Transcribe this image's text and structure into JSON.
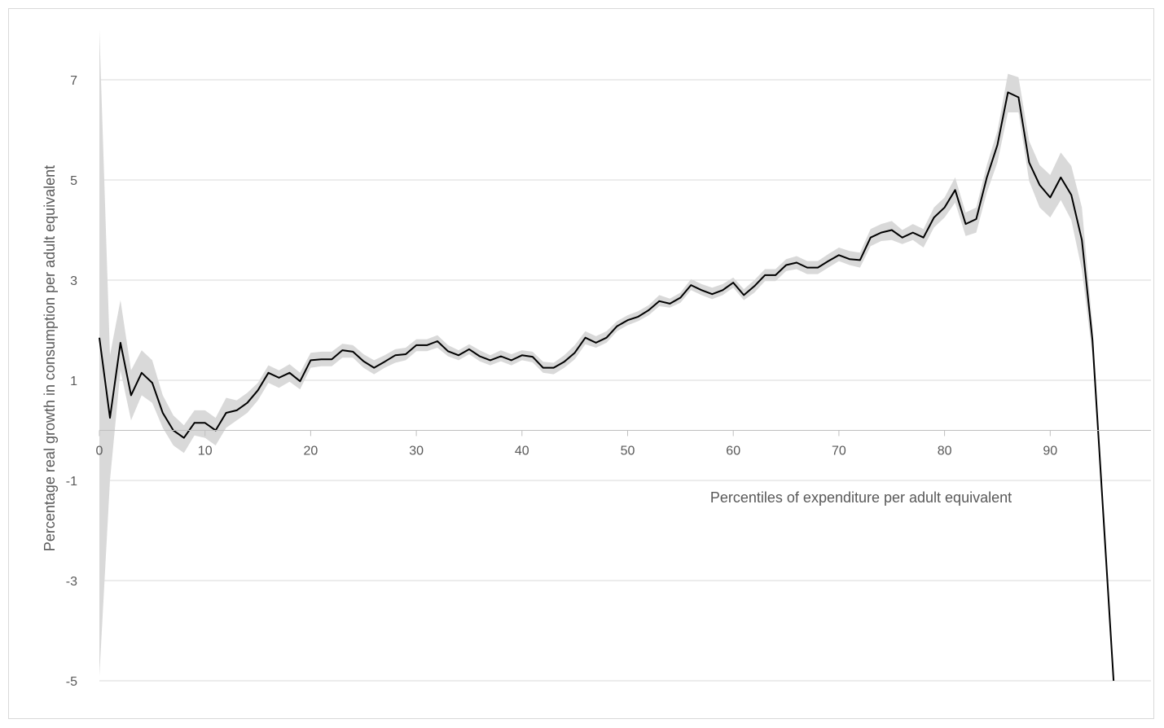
{
  "chart_data": {
    "type": "line",
    "title": "",
    "xlabel": "Percentiles of expenditure per adult equivalent",
    "ylabel": "Percentage real growth in consumption per adult equivalent",
    "xlim": [
      0,
      99
    ],
    "ylim": [
      -5,
      8
    ],
    "x_ticks": [
      0,
      10,
      20,
      30,
      40,
      50,
      60,
      70,
      80,
      90
    ],
    "y_ticks": [
      7,
      5,
      3,
      1,
      -1,
      -3,
      -5
    ],
    "grid": true,
    "legend": "none",
    "colors": {
      "line": "#000000",
      "band": "#d9d9d9",
      "grid": "#d9d9d9",
      "text": "#595959"
    },
    "series": [
      {
        "x": [
          0,
          1,
          2,
          3,
          4,
          5,
          6,
          7,
          8,
          9,
          10,
          11,
          12,
          13,
          14,
          15,
          16,
          17,
          18,
          19,
          20,
          21,
          22,
          23,
          24,
          25,
          26,
          27,
          28,
          29,
          30,
          31,
          32,
          33,
          34,
          35,
          36,
          37,
          38,
          39,
          40,
          41,
          42,
          43,
          44,
          45,
          46,
          47,
          48,
          49,
          50,
          51,
          52,
          53,
          54,
          55,
          56,
          57,
          58,
          59,
          60,
          61,
          62,
          63,
          64,
          65,
          66,
          67,
          68,
          69,
          70,
          71,
          72,
          73,
          74,
          75,
          76,
          77,
          78,
          79,
          80,
          81,
          82,
          83,
          84,
          85,
          86,
          87,
          88,
          89,
          90,
          91,
          92,
          93,
          94,
          95,
          96
        ],
        "y": [
          1.85,
          0.25,
          1.75,
          0.7,
          1.15,
          0.95,
          0.35,
          0.0,
          -0.15,
          0.15,
          0.15,
          0.0,
          0.35,
          0.4,
          0.55,
          0.8,
          1.15,
          1.05,
          1.15,
          0.98,
          1.4,
          1.42,
          1.42,
          1.6,
          1.57,
          1.38,
          1.25,
          1.37,
          1.5,
          1.52,
          1.7,
          1.7,
          1.78,
          1.58,
          1.5,
          1.62,
          1.48,
          1.4,
          1.48,
          1.4,
          1.5,
          1.47,
          1.25,
          1.25,
          1.37,
          1.55,
          1.85,
          1.75,
          1.85,
          2.08,
          2.2,
          2.27,
          2.4,
          2.58,
          2.53,
          2.65,
          2.9,
          2.8,
          2.72,
          2.8,
          2.95,
          2.7,
          2.88,
          3.1,
          3.1,
          3.3,
          3.35,
          3.25,
          3.25,
          3.38,
          3.5,
          3.42,
          3.4,
          3.85,
          3.95,
          4.0,
          3.85,
          3.95,
          3.85,
          4.25,
          4.45,
          4.8,
          4.12,
          4.22,
          5.05,
          5.7,
          6.75,
          6.65,
          5.35,
          4.9,
          4.65,
          5.05,
          4.7,
          3.8,
          1.8,
          -1.6,
          -5.0
        ],
        "lower": [
          -4.9,
          -1.0,
          1.2,
          0.2,
          0.7,
          0.55,
          0.05,
          -0.3,
          -0.45,
          -0.1,
          -0.15,
          -0.3,
          0.05,
          0.2,
          0.35,
          0.6,
          0.95,
          0.85,
          0.97,
          0.82,
          1.25,
          1.28,
          1.28,
          1.45,
          1.45,
          1.25,
          1.12,
          1.25,
          1.35,
          1.4,
          1.58,
          1.58,
          1.65,
          1.48,
          1.4,
          1.52,
          1.38,
          1.3,
          1.38,
          1.3,
          1.4,
          1.36,
          1.15,
          1.12,
          1.25,
          1.42,
          1.72,
          1.65,
          1.75,
          1.98,
          2.1,
          2.18,
          2.3,
          2.48,
          2.45,
          2.55,
          2.8,
          2.7,
          2.62,
          2.7,
          2.85,
          2.6,
          2.75,
          2.98,
          2.98,
          3.18,
          3.22,
          3.12,
          3.12,
          3.25,
          3.38,
          3.3,
          3.25,
          3.68,
          3.78,
          3.8,
          3.72,
          3.8,
          3.65,
          4.05,
          4.25,
          4.55,
          3.88,
          3.95,
          4.75,
          5.35,
          6.35,
          6.35,
          4.98,
          4.45,
          4.25,
          4.6,
          4.2,
          3.2,
          1.5,
          -1.6,
          -5.0
        ],
        "upper": [
          8.0,
          1.5,
          2.6,
          1.2,
          1.6,
          1.4,
          0.7,
          0.3,
          0.1,
          0.4,
          0.4,
          0.25,
          0.65,
          0.6,
          0.75,
          0.95,
          1.3,
          1.2,
          1.32,
          1.15,
          1.55,
          1.57,
          1.57,
          1.73,
          1.7,
          1.52,
          1.4,
          1.5,
          1.62,
          1.65,
          1.82,
          1.82,
          1.9,
          1.7,
          1.6,
          1.72,
          1.6,
          1.5,
          1.6,
          1.52,
          1.6,
          1.57,
          1.37,
          1.35,
          1.5,
          1.7,
          1.98,
          1.88,
          1.98,
          2.18,
          2.3,
          2.38,
          2.5,
          2.7,
          2.63,
          2.75,
          3.02,
          2.92,
          2.85,
          2.92,
          3.05,
          2.82,
          3.0,
          3.22,
          3.22,
          3.42,
          3.48,
          3.38,
          3.38,
          3.52,
          3.65,
          3.58,
          3.55,
          4.02,
          4.12,
          4.18,
          4.0,
          4.12,
          4.02,
          4.45,
          4.65,
          5.05,
          4.35,
          4.45,
          5.3,
          5.98,
          7.12,
          7.05,
          5.78,
          5.3,
          5.1,
          5.55,
          5.28,
          4.45,
          2.1,
          -1.6,
          -5.0
        ]
      }
    ]
  }
}
